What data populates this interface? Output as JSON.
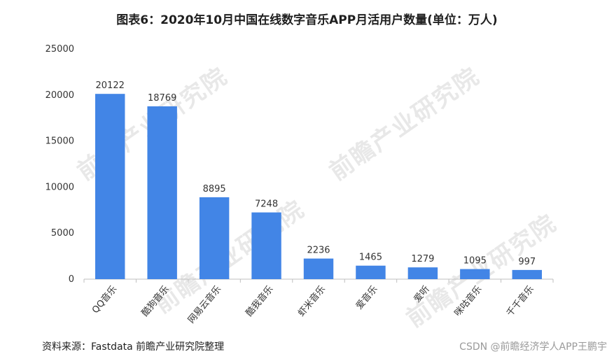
{
  "title": "图表6：2020年10月中国在线数字音乐APP月活用户数量(单位：万人)",
  "source": "资料来源：Fastdata 前瞻产业研究院整理",
  "credit": "CSDN @前瞻经济学人APP王鹏宇",
  "watermark": "前瞻产业研究院",
  "colors": {
    "bar": "#4285e6",
    "axis": "#bfbfbf"
  },
  "chart_data": {
    "type": "bar",
    "categories": [
      "QQ音乐",
      "酷狗音乐",
      "网易云音乐",
      "酷我音乐",
      "虾米音乐",
      "爱音乐",
      "爱听",
      "咪咕音乐",
      "千千音乐"
    ],
    "values": [
      20122,
      18769,
      8895,
      7248,
      2236,
      1465,
      1279,
      1095,
      997
    ],
    "yticks": [
      0,
      5000,
      10000,
      15000,
      20000,
      25000
    ],
    "ylim": [
      0,
      25000
    ],
    "xlabel": "",
    "ylabel": "",
    "grid": false,
    "legend": "none"
  }
}
